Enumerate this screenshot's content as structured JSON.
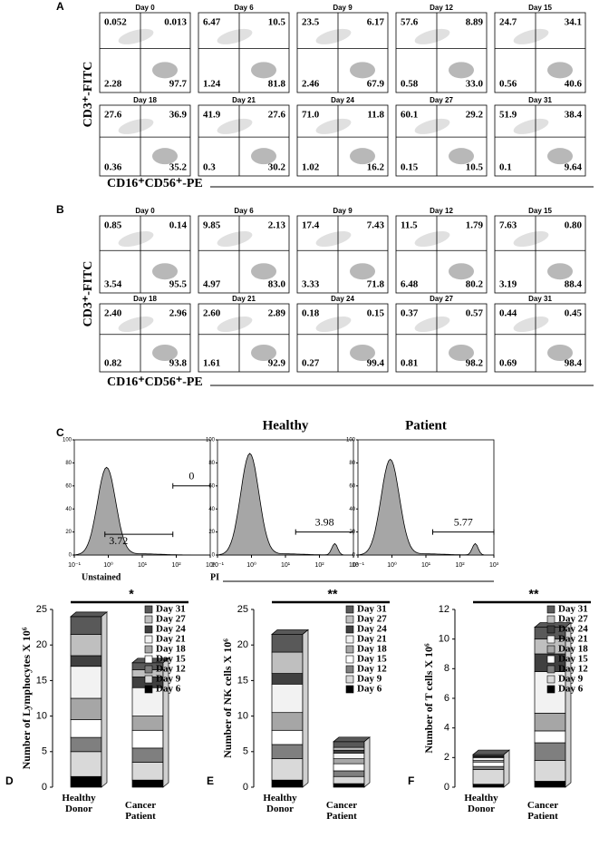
{
  "panel_a": {
    "label": "A",
    "y_axis_label": "CD3⁺-FITC",
    "x_axis_label": "CD16⁺CD56⁺-PE",
    "plots": [
      {
        "day": "Day 0",
        "quadrants": [
          "0.052",
          "0.013",
          "2.28",
          "97.7"
        ]
      },
      {
        "day": "Day 6",
        "quadrants": [
          "6.47",
          "10.5",
          "1.24",
          "81.8"
        ]
      },
      {
        "day": "Day 9",
        "quadrants": [
          "23.5",
          "6.17",
          "2.46",
          "67.9"
        ]
      },
      {
        "day": "Day 12",
        "quadrants": [
          "57.6",
          "8.89",
          "0.58",
          "33.0"
        ]
      },
      {
        "day": "Day 15",
        "quadrants": [
          "24.7",
          "34.1",
          "0.56",
          "40.6"
        ]
      },
      {
        "day": "Day 18",
        "quadrants": [
          "27.6",
          "36.9",
          "0.36",
          "35.2"
        ]
      },
      {
        "day": "Day 21",
        "quadrants": [
          "41.9",
          "27.6",
          "0.3",
          "30.2"
        ]
      },
      {
        "day": "Day 24",
        "quadrants": [
          "71.0",
          "11.8",
          "1.02",
          "16.2"
        ]
      },
      {
        "day": "Day 27",
        "quadrants": [
          "60.1",
          "29.2",
          "0.15",
          "10.5"
        ]
      },
      {
        "day": "Day 31",
        "quadrants": [
          "51.9",
          "38.4",
          "0.1",
          "9.64"
        ]
      }
    ]
  },
  "panel_b": {
    "label": "B",
    "y_axis_label": "CD3⁺-FITC",
    "x_axis_label": "CD16⁺CD56⁺-PE",
    "plots": [
      {
        "day": "Day 0",
        "quadrants": [
          "0.85",
          "0.14",
          "3.54",
          "95.5"
        ]
      },
      {
        "day": "Day 6",
        "quadrants": [
          "9.85",
          "2.13",
          "4.97",
          "83.0"
        ]
      },
      {
        "day": "Day 9",
        "quadrants": [
          "17.4",
          "7.43",
          "3.33",
          "71.8"
        ]
      },
      {
        "day": "Day 12",
        "quadrants": [
          "11.5",
          "1.79",
          "6.48",
          "80.2"
        ]
      },
      {
        "day": "Day 15",
        "quadrants": [
          "7.63",
          "0.80",
          "3.19",
          "88.4"
        ]
      },
      {
        "day": "Day 18",
        "quadrants": [
          "2.40",
          "2.96",
          "0.82",
          "93.8"
        ]
      },
      {
        "day": "Day 21",
        "quadrants": [
          "2.60",
          "2.89",
          "1.61",
          "92.9"
        ]
      },
      {
        "day": "Day 24",
        "quadrants": [
          "0.18",
          "0.15",
          "0.27",
          "99.4"
        ]
      },
      {
        "day": "Day 27",
        "quadrants": [
          "0.37",
          "0.57",
          "0.81",
          "98.2"
        ]
      },
      {
        "day": "Day 31",
        "quadrants": [
          "0.44",
          "0.45",
          "0.69",
          "98.4"
        ]
      }
    ]
  },
  "panel_c": {
    "label": "C",
    "x_axis_label": "PI",
    "ylim": [
      0,
      100
    ],
    "yticks": [
      0,
      20,
      40,
      60,
      80,
      100
    ],
    "xlim": [
      -1,
      3
    ],
    "xticks": [
      {
        "value": -1,
        "label": "10⁻¹"
      },
      {
        "value": 0,
        "label": "10⁰"
      },
      {
        "value": 1,
        "label": "10¹"
      },
      {
        "value": 2,
        "label": "10²"
      },
      {
        "value": 3,
        "label": "10³"
      }
    ],
    "plots": [
      {
        "sublabel": "Unstained",
        "gates": [
          "0",
          "3.72"
        ]
      },
      {
        "title": "Healthy",
        "gates": [
          "3.98"
        ]
      },
      {
        "title": "Patient",
        "gates": [
          "5.77"
        ]
      }
    ]
  },
  "chart_data": [
    {
      "type": "stacked_bar",
      "label": "D",
      "significance": "*",
      "y_label": "Number of Lymphocytes X 10⁶",
      "categories": [
        "Healthy Donor",
        "Cancer Patient"
      ],
      "ylim": [
        0,
        25
      ],
      "yticks": [
        0,
        5,
        10,
        15,
        20,
        25
      ],
      "series": [
        {
          "name": "Day 6",
          "color": "#000000",
          "values": [
            1.5,
            1
          ]
        },
        {
          "name": "Day 9",
          "color": "#d9d9d9",
          "values": [
            3.5,
            2.5
          ]
        },
        {
          "name": "Day 12",
          "color": "#7f7f7f",
          "values": [
            2,
            2
          ]
        },
        {
          "name": "Day 15",
          "color": "#ffffff",
          "values": [
            2.5,
            2.5
          ]
        },
        {
          "name": "Day 18",
          "color": "#a6a6a6",
          "values": [
            3,
            2
          ]
        },
        {
          "name": "Day 21",
          "color": "#f2f2f2",
          "values": [
            4.5,
            4
          ]
        },
        {
          "name": "Day 24",
          "color": "#404040",
          "values": [
            1.5,
            1.5
          ]
        },
        {
          "name": "Day 27",
          "color": "#bfbfbf",
          "values": [
            3,
            1
          ]
        },
        {
          "name": "Day 31",
          "color": "#595959",
          "values": [
            2.5,
            1
          ]
        }
      ]
    },
    {
      "type": "stacked_bar",
      "label": "E",
      "significance": "**",
      "y_label": "Number of NK cells X 10⁶",
      "categories": [
        "Healthy Donor",
        "Cancer Patient"
      ],
      "ylim": [
        0,
        25
      ],
      "yticks": [
        0,
        5,
        10,
        15,
        20,
        25
      ],
      "series": [
        {
          "name": "Day 6",
          "color": "#000000",
          "values": [
            1,
            0.5
          ]
        },
        {
          "name": "Day 9",
          "color": "#d9d9d9",
          "values": [
            3,
            1
          ]
        },
        {
          "name": "Day 12",
          "color": "#7f7f7f",
          "values": [
            2,
            0.8
          ]
        },
        {
          "name": "Day 15",
          "color": "#ffffff",
          "values": [
            2,
            1
          ]
        },
        {
          "name": "Day 18",
          "color": "#a6a6a6",
          "values": [
            2.5,
            0.7
          ]
        },
        {
          "name": "Day 21",
          "color": "#f2f2f2",
          "values": [
            4,
            0.8
          ]
        },
        {
          "name": "Day 24",
          "color": "#404040",
          "values": [
            1.5,
            0.4
          ]
        },
        {
          "name": "Day 27",
          "color": "#bfbfbf",
          "values": [
            3,
            0.4
          ]
        },
        {
          "name": "Day 31",
          "color": "#595959",
          "values": [
            2.5,
            0.8
          ]
        }
      ]
    },
    {
      "type": "stacked_bar",
      "label": "F",
      "significance": "**",
      "y_label": "Number of T cells X 10⁶",
      "categories": [
        "Healthy Donor",
        "Cancer Patient"
      ],
      "ylim": [
        0,
        12
      ],
      "yticks": [
        0,
        2,
        4,
        6,
        8,
        10,
        12
      ],
      "series": [
        {
          "name": "Day 6",
          "color": "#000000",
          "values": [
            0.2,
            0.4
          ]
        },
        {
          "name": "Day 9",
          "color": "#d9d9d9",
          "values": [
            1,
            1.4
          ]
        },
        {
          "name": "Day 12",
          "color": "#7f7f7f",
          "values": [
            0.2,
            1.2
          ]
        },
        {
          "name": "Day 15",
          "color": "#ffffff",
          "values": [
            0.3,
            0.8
          ]
        },
        {
          "name": "Day 18",
          "color": "#a6a6a6",
          "values": [
            0.1,
            1.2
          ]
        },
        {
          "name": "Day 21",
          "color": "#f2f2f2",
          "values": [
            0.2,
            2.8
          ]
        },
        {
          "name": "Day 24",
          "color": "#404040",
          "values": [
            0.05,
            1.2
          ]
        },
        {
          "name": "Day 27",
          "color": "#bfbfbf",
          "values": [
            0.05,
            1
          ]
        },
        {
          "name": "Day 31",
          "color": "#595959",
          "values": [
            0.1,
            0.8
          ]
        }
      ]
    }
  ]
}
